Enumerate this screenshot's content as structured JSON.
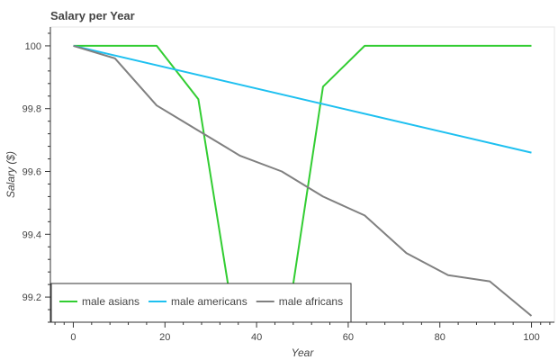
{
  "chart_data": {
    "type": "line",
    "title": "Salary per Year",
    "xlabel": "Year",
    "ylabel": "Salary ($)",
    "xlim": [
      -5,
      105
    ],
    "ylim": [
      99.12,
      100.06
    ],
    "x_ticks": [
      0,
      20,
      40,
      60,
      80,
      100
    ],
    "y_ticks": [
      99.2,
      99.4,
      99.6,
      99.8,
      100
    ],
    "grid": false,
    "legend_position": "bottom-left",
    "series": [
      {
        "name": "male asians",
        "color": "#32cd32",
        "x": [
          0,
          9.1,
          18.2,
          27.3,
          36.4,
          45.5,
          54.5,
          63.6,
          72.7,
          81.8,
          90.9,
          100
        ],
        "y": [
          100,
          100,
          100,
          99.83,
          99.0,
          99.0,
          99.87,
          100,
          100,
          100,
          100,
          100
        ]
      },
      {
        "name": "male americans",
        "color": "#1ec0f0",
        "x": [
          0,
          100
        ],
        "y": [
          100,
          99.66
        ]
      },
      {
        "name": "male africans",
        "color": "#808080",
        "x": [
          0,
          9.1,
          18.2,
          27.3,
          36.4,
          45.5,
          54.5,
          63.6,
          72.7,
          81.8,
          90.9,
          100
        ],
        "y": [
          100,
          99.96,
          99.81,
          99.73,
          99.65,
          99.6,
          99.52,
          99.46,
          99.34,
          99.27,
          99.25,
          99.14
        ]
      }
    ]
  }
}
